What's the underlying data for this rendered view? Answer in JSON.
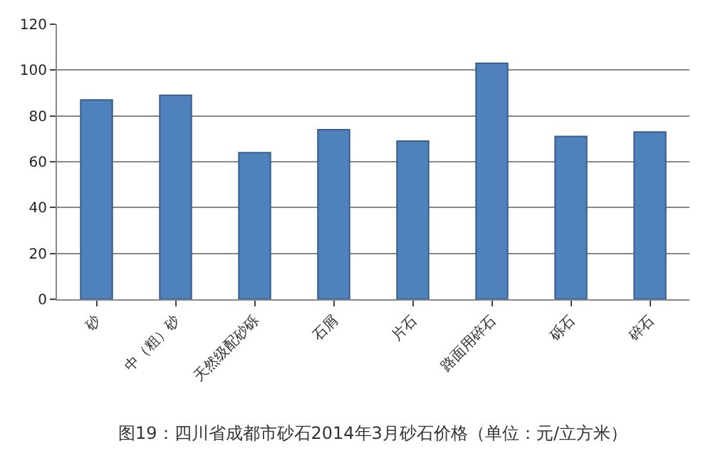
{
  "chart_data": {
    "type": "bar",
    "title": "图19：四川省成都市砂石2014年3月砂石价格（单位：元/立方米）",
    "categories": [
      "砂",
      "中（粗）砂",
      "天然级配砂砾",
      "石屑",
      "片石",
      "路面用碎石",
      "砾石",
      "碎石"
    ],
    "values": [
      87,
      89,
      64,
      74,
      69,
      103,
      71,
      73
    ],
    "color": "#4f81bd",
    "ylim": [
      0,
      120
    ],
    "yticks": [
      0,
      20,
      40,
      60,
      80,
      100,
      120
    ],
    "grid": "y"
  }
}
